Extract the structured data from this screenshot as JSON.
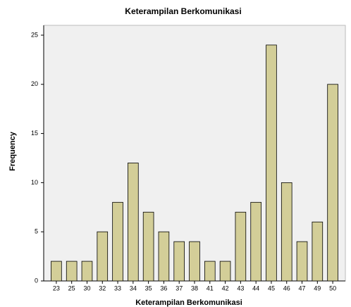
{
  "chart_data": {
    "type": "bar",
    "title": "Keterampilan Berkomunikasi",
    "x_label": "Keterampilan Berkomunikasi",
    "y_label": "Frequency",
    "categories": [
      "23",
      "25",
      "30",
      "32",
      "33",
      "34",
      "35",
      "36",
      "37",
      "38",
      "41",
      "42",
      "43",
      "44",
      "45",
      "46",
      "47",
      "49",
      "50"
    ],
    "values": [
      2,
      2,
      2,
      5,
      8,
      12,
      7,
      5,
      4,
      4,
      2,
      2,
      7,
      8,
      24,
      10,
      4,
      6,
      20
    ],
    "color": "#d3ce98",
    "ylim": [
      0,
      26
    ],
    "yticks": [
      0,
      5,
      10,
      15,
      20,
      25
    ],
    "grid": false
  }
}
